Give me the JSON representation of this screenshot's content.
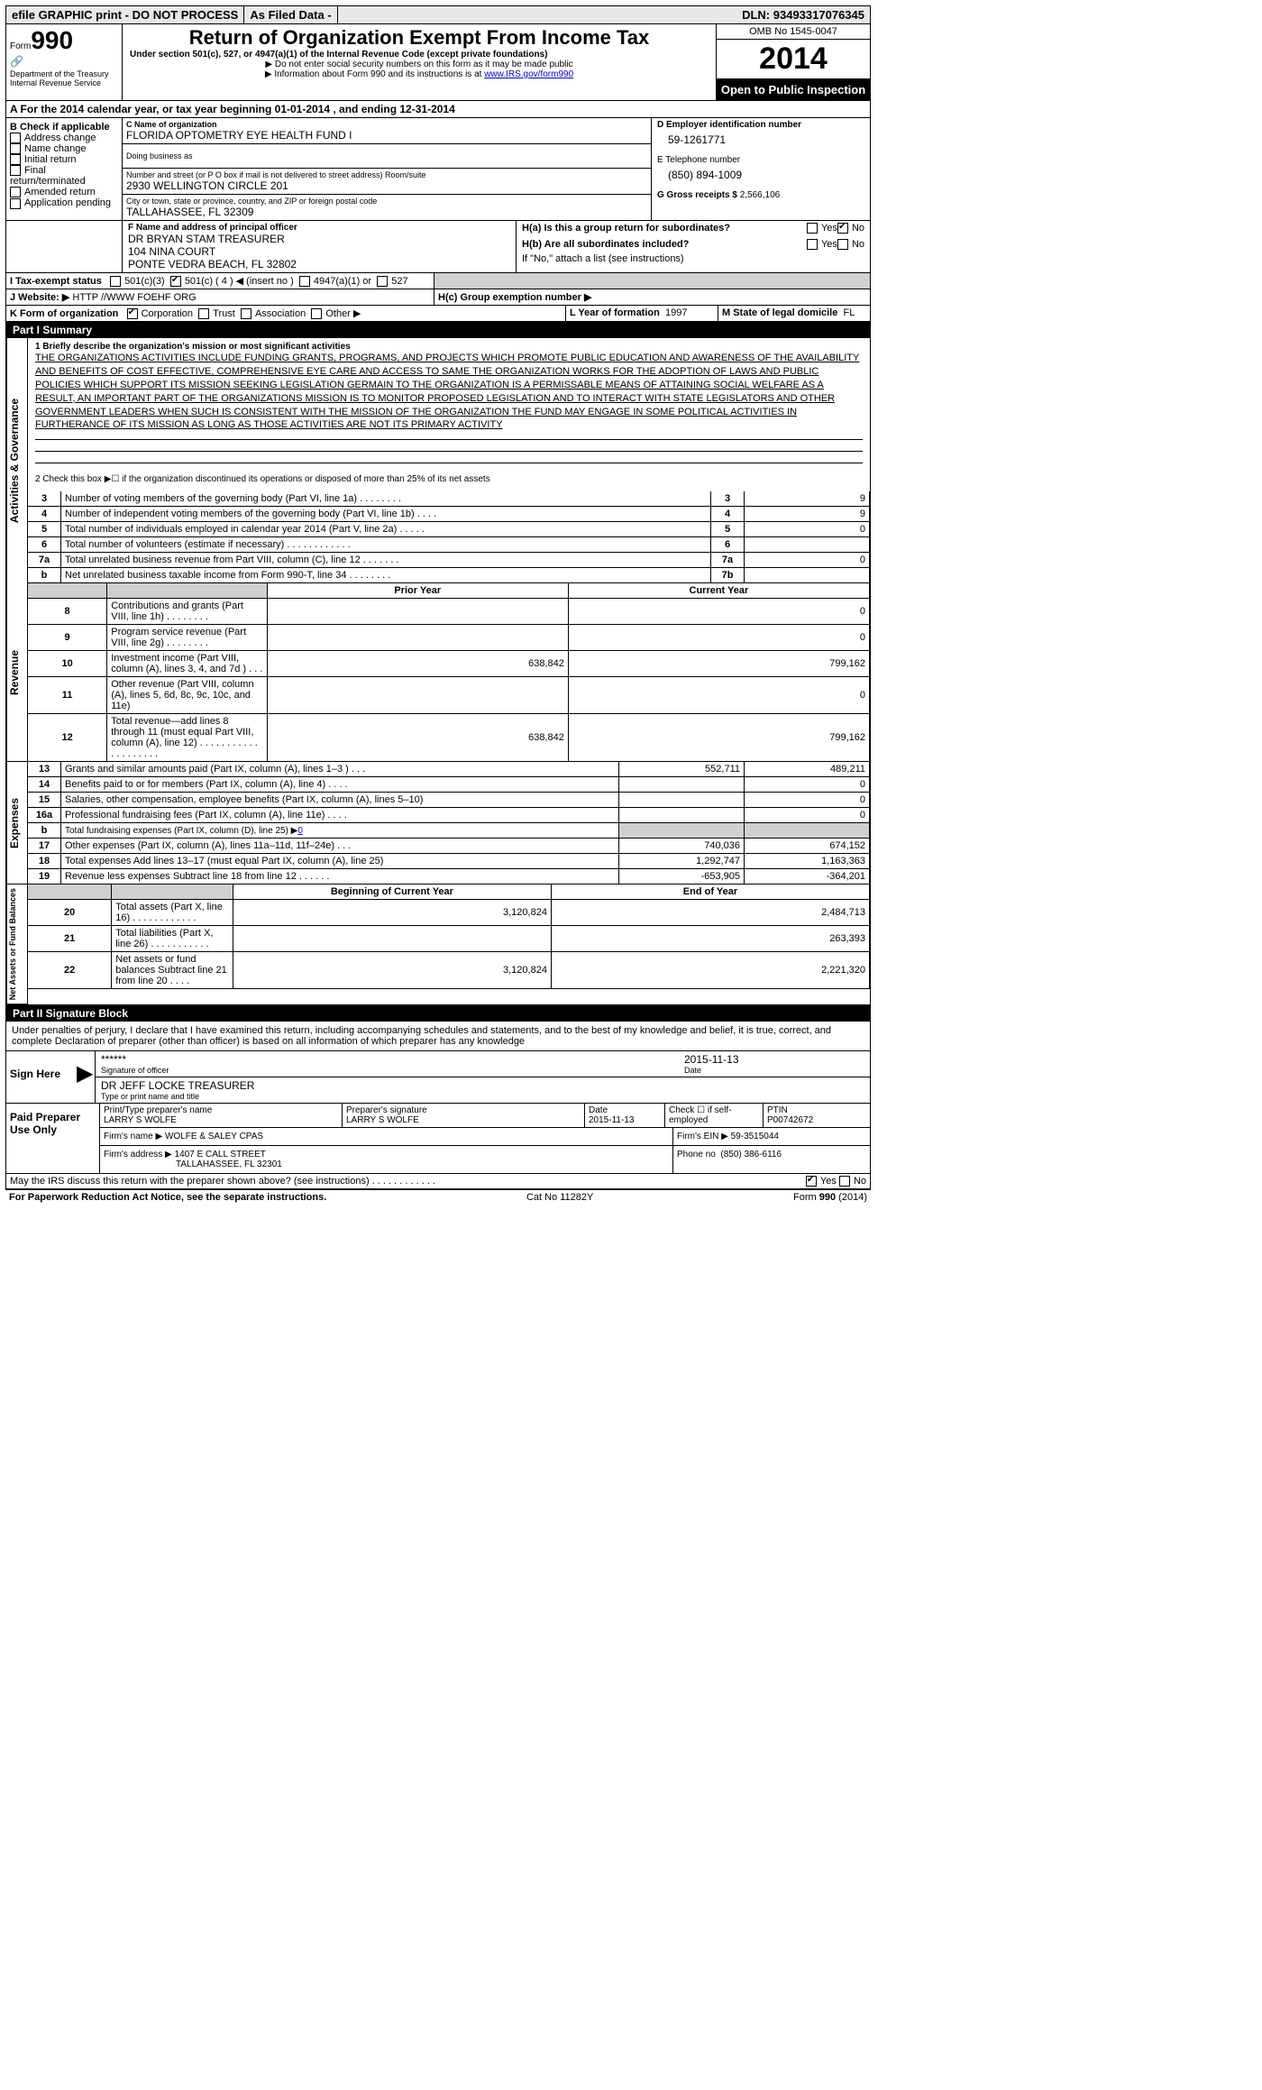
{
  "topbar": {
    "efile": "efile GRAPHIC print - DO NOT PROCESS",
    "asfiled": "As Filed Data -",
    "dln_label": "DLN:",
    "dln": "93493317076345"
  },
  "header": {
    "form_word": "Form",
    "form_no": "990",
    "dept_line1": "Department of the Treasury",
    "dept_line2": "Internal Revenue Service",
    "title": "Return of Organization Exempt From Income Tax",
    "subtitle": "Under section 501(c), 527, or 4947(a)(1) of the Internal Revenue Code (except private foundations)",
    "note1": "▶ Do not enter social security numbers on this form as it may be made public",
    "note2_pre": "▶ Information about Form 990 and its instructions is at ",
    "note2_link": "www.IRS.gov/form990",
    "omb": "OMB No 1545-0047",
    "year": "2014",
    "open": "Open to Public Inspection"
  },
  "sectionA": {
    "line": "A For the 2014 calendar year, or tax year beginning 01-01-2014    , and ending 12-31-2014",
    "check_label": "B  Check if applicable",
    "checks": [
      "Address change",
      "Name change",
      "Initial return",
      "Final return/terminated",
      "Amended return",
      "Application pending"
    ],
    "c_label": "C Name of organization",
    "org_name": "FLORIDA OPTOMETRY EYE HEALTH FUND I",
    "dba_label": "Doing business as",
    "addr_label": "Number and street (or P O  box if mail is not delivered to street address)   Room/suite",
    "street": "2930 WELLINGTON CIRCLE 201",
    "city_label": "City or town, state or province, country, and ZIP or foreign postal code",
    "city": "TALLAHASSEE, FL  32309",
    "d_label": "D Employer identification number",
    "ein": "59-1261771",
    "e_label": "E Telephone number",
    "phone": "(850) 894-1009",
    "g_label": "G Gross receipts $",
    "gross": "2,566,106",
    "f_label": "F   Name and address of principal officer",
    "officer_name": "DR BRYAN STAM TREASURER",
    "officer_addr1": "104 NINA COURT",
    "officer_addr2": "PONTE VEDRA BEACH, FL  32802",
    "ha_label": "H(a)  Is this a group return for subordinates?",
    "hb_label": "H(b)  Are all subordinates included?",
    "hb_note": "If \"No,\" attach a list  (see instructions)",
    "hc_label": "H(c)   Group exemption number ▶",
    "i_label": "I   Tax-exempt status",
    "i_opts": [
      "501(c)(3)",
      "501(c) ( 4 ) ◀ (insert no )",
      "4947(a)(1) or",
      "527"
    ],
    "j_label": "J  Website: ▶",
    "website": "HTTP //WWW FOEHF ORG",
    "k_label": "K Form of organization",
    "k_opts": [
      "Corporation",
      "Trust",
      "Association",
      "Other ▶"
    ],
    "l_label": "L Year of formation",
    "l_val": "1997",
    "m_label": "M State of legal domicile",
    "m_val": "FL",
    "yes": "Yes",
    "no": "No"
  },
  "part1": {
    "title": "Part I      Summary",
    "line1_label": "1   Briefly describe the organization's mission or most significant activities",
    "mission": "THE ORGANIZATIONS ACTIVITIES INCLUDE FUNDING GRANTS, PROGRAMS, AND PROJECTS WHICH PROMOTE PUBLIC EDUCATION AND AWARENESS OF THE AVAILABILITY AND BENEFITS OF COST EFFECTIVE, COMPREHENSIVE EYE CARE AND ACCESS TO SAME  THE ORGANIZATION WORKS FOR THE ADOPTION OF LAWS AND PUBLIC POLICIES WHICH SUPPORT ITS MISSION  SEEKING LEGISLATION GERMAIN TO THE ORGANIZATION IS A PERMISSABLE MEANS OF ATTAINING SOCIAL WELFARE  AS A RESULT, AN IMPORTANT PART OF THE ORGANIZATIONS MISSION IS TO MONITOR PROPOSED LEGISLATION AND TO INTERACT WITH STATE LEGISLATORS AND OTHER GOVERNMENT LEADERS WHEN SUCH IS CONSISTENT WITH THE MISSION OF THE ORGANIZATION  THE FUND MAY ENGAGE IN SOME POLITICAL ACTIVITIES IN FURTHERANCE OF ITS MISSION AS LONG AS THOSE ACTIVITIES ARE NOT ITS PRIMARY ACTIVITY",
    "line2": "2   Check this box ▶☐ if the organization discontinued its operations or disposed of more than 25% of its net assets",
    "gov_rows": [
      {
        "n": "3",
        "label": "Number of voting members of the governing body (Part VI, line 1a)  .   .   .   .   .   .   .   .",
        "box": "3",
        "val": "9"
      },
      {
        "n": "4",
        "label": "Number of independent voting members of the governing body (Part VI, line 1b)   .   .   .   .",
        "box": "4",
        "val": "9"
      },
      {
        "n": "5",
        "label": "Total number of individuals employed in calendar year 2014 (Part V, line 2a)  .   .   .   .   .",
        "box": "5",
        "val": "0"
      },
      {
        "n": "6",
        "label": "Total number of volunteers (estimate if necessary)   .   .   .   .   .   .   .   .   .   .   .   .",
        "box": "6",
        "val": ""
      },
      {
        "n": "7a",
        "label": "Total unrelated business revenue from Part VIII, column (C), line 12   .   .   .   .   .   .   .",
        "box": "7a",
        "val": "0"
      },
      {
        "n": "b",
        "label": "Net unrelated business taxable income from Form 990-T, line 34   .   .   .   .   .   .   .   .",
        "box": "7b",
        "val": ""
      }
    ],
    "col_prior": "Prior Year",
    "col_current": "Current Year",
    "revenue_rows": [
      {
        "n": "8",
        "label": "Contributions and grants (Part VIII, line 1h)   .   .   .   .   .   .   .   .",
        "p": "",
        "c": "0"
      },
      {
        "n": "9",
        "label": "Program service revenue (Part VIII, line 2g)   .   .   .   .   .   .   .   .",
        "p": "",
        "c": "0"
      },
      {
        "n": "10",
        "label": "Investment income (Part VIII, column (A), lines 3, 4, and 7d )   .   .   .",
        "p": "638,842",
        "c": "799,162"
      },
      {
        "n": "11",
        "label": "Other revenue (Part VIII, column (A), lines 5, 6d, 8c, 9c, 10c, and 11e)",
        "p": "",
        "c": "0"
      },
      {
        "n": "12",
        "label": "Total revenue—add lines 8 through 11 (must equal Part VIII, column (A), line 12)  .   .   .   .   .   .   .   .   .   .   .   .   .   .   .   .   .   .   .   .",
        "p": "638,842",
        "c": "799,162"
      }
    ],
    "expense_rows": [
      {
        "n": "13",
        "label": "Grants and similar amounts paid (Part IX, column (A), lines 1–3 )   .   .   .",
        "p": "552,711",
        "c": "489,211"
      },
      {
        "n": "14",
        "label": "Benefits paid to or for members (Part IX, column (A), line 4)   .   .   .   .",
        "p": "",
        "c": "0"
      },
      {
        "n": "15",
        "label": "Salaries, other compensation, employee benefits (Part IX, column (A), lines 5–10)",
        "p": "",
        "c": "0"
      },
      {
        "n": "16a",
        "label": "Professional fundraising fees (Part IX, column (A), line 11e)  .   .   .   .",
        "p": "",
        "c": "0"
      },
      {
        "n": "b",
        "label": "Total fundraising expenses (Part IX, column (D), line 25) ▶",
        "p": "gray",
        "c": "gray",
        "extra": "0"
      },
      {
        "n": "17",
        "label": "Other expenses (Part IX, column (A), lines 11a–11d, 11f–24e)   .   .   .",
        "p": "740,036",
        "c": "674,152"
      },
      {
        "n": "18",
        "label": "Total expenses  Add lines 13–17 (must equal Part IX, column (A), line 25)",
        "p": "1,292,747",
        "c": "1,163,363"
      },
      {
        "n": "19",
        "label": "Revenue less expenses  Subtract line 18 from line 12  .   .   .   .   .   .",
        "p": "-653,905",
        "c": "-364,201"
      }
    ],
    "col_boy": "Beginning of Current Year",
    "col_eoy": "End of Year",
    "net_rows": [
      {
        "n": "20",
        "label": "Total assets (Part X, line 16)  .   .   .   .   .   .   .   .   .   .   .   .",
        "p": "3,120,824",
        "c": "2,484,713"
      },
      {
        "n": "21",
        "label": "Total liabilities (Part X, line 26)  .   .   .   .   .   .   .   .   .   .   .",
        "p": "",
        "c": "263,393"
      },
      {
        "n": "22",
        "label": "Net assets or fund balances  Subtract line 21 from line 20  .   .   .   .",
        "p": "3,120,824",
        "c": "2,221,320"
      }
    ],
    "vlabels": {
      "gov": "Activities & Governance",
      "rev": "Revenue",
      "exp": "Expenses",
      "net": "Net Assets or Fund Balances"
    }
  },
  "part2": {
    "title": "Part II     Signature Block",
    "perjury": "Under penalties of perjury, I declare that I have examined this return, including accompanying schedules and statements, and to the best of my knowledge and belief, it is true, correct, and complete  Declaration of preparer (other than officer) is based on all information of which preparer has any knowledge",
    "sign_here": "Sign Here",
    "sig_mask": "******",
    "sig_label": "Signature of officer",
    "date_label": "Date",
    "sig_date": "2015-11-13",
    "officer": "DR JEFF LOCKE TREASURER",
    "officer_label": "Type or print name and title",
    "paid": "Paid Preparer Use Only",
    "prep_name_label": "Print/Type preparer's name",
    "prep_name": "LARRY S WOLFE",
    "prep_sig_label": "Preparer's signature",
    "prep_sig": "LARRY S WOLFE",
    "prep_date_label": "Date",
    "prep_date": "2015-11-13",
    "self_emp_label": "Check ☐ if self-employed",
    "ptin_label": "PTIN",
    "ptin": "P00742672",
    "firm_name_label": "Firm's name    ▶",
    "firm_name": "WOLFE & SALEY CPAS",
    "firm_ein_label": "Firm's EIN ▶",
    "firm_ein": "59-3515044",
    "firm_addr_label": "Firm's address ▶",
    "firm_addr1": "1407 E CALL STREET",
    "firm_addr2": "TALLAHASSEE, FL  32301",
    "firm_phone_label": "Phone no",
    "firm_phone": "(850) 386-6116",
    "discuss": "May the IRS discuss this return with the preparer shown above? (see instructions)   .   .   .   .   .   .   .   .   .   .   .   .",
    "yes": "Yes",
    "no": "No"
  },
  "footer": {
    "pra": "For Paperwork Reduction Act Notice, see the separate instructions.",
    "cat": "Cat No 11282Y",
    "form": "Form 990 (2014)"
  }
}
